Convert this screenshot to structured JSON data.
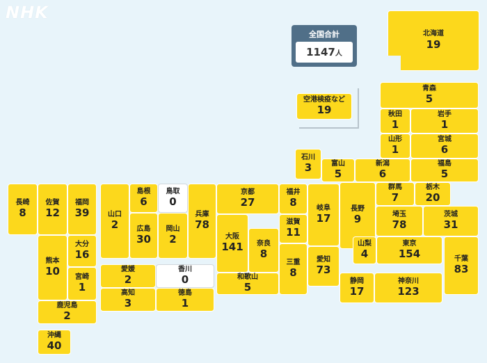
{
  "logo": "NHK",
  "total": {
    "label": "全国合計",
    "value": "1147",
    "unit": "人"
  },
  "colors": {
    "filled": "#fcd81c",
    "zero": "#ffffff",
    "background": "#e8f4fa",
    "total_panel": "#506f88"
  },
  "regions": [
    {
      "id": "hokkaido",
      "name": "北海道",
      "count": "19"
    },
    {
      "id": "quarantine",
      "name": "空港検疫など",
      "count": "19"
    },
    {
      "id": "aomori",
      "name": "青森",
      "count": "5"
    },
    {
      "id": "akita",
      "name": "秋田",
      "count": "1"
    },
    {
      "id": "iwate",
      "name": "岩手",
      "count": "1"
    },
    {
      "id": "yamagata",
      "name": "山形",
      "count": "1"
    },
    {
      "id": "miyagi",
      "name": "宮城",
      "count": "6"
    },
    {
      "id": "ishikawa",
      "name": "石川",
      "count": "3"
    },
    {
      "id": "toyama",
      "name": "富山",
      "count": "5"
    },
    {
      "id": "niigata",
      "name": "新潟",
      "count": "6"
    },
    {
      "id": "fukushima",
      "name": "福島",
      "count": "5"
    },
    {
      "id": "nagasaki",
      "name": "長崎",
      "count": "8"
    },
    {
      "id": "saga",
      "name": "佐賀",
      "count": "12"
    },
    {
      "id": "fukuoka",
      "name": "福岡",
      "count": "39"
    },
    {
      "id": "yamaguchi",
      "name": "山口",
      "count": "2"
    },
    {
      "id": "shimane",
      "name": "島根",
      "count": "6"
    },
    {
      "id": "tottori",
      "name": "鳥取",
      "count": "0"
    },
    {
      "id": "hyogo",
      "name": "兵庫",
      "count": "78"
    },
    {
      "id": "kyoto",
      "name": "京都",
      "count": "27"
    },
    {
      "id": "fukui",
      "name": "福井",
      "count": "8"
    },
    {
      "id": "gifu",
      "name": "岐阜",
      "count": "17"
    },
    {
      "id": "nagano",
      "name": "長野",
      "count": "9"
    },
    {
      "id": "gunma",
      "name": "群馬",
      "count": "7"
    },
    {
      "id": "tochigi",
      "name": "栃木",
      "count": "20"
    },
    {
      "id": "hiroshima",
      "name": "広島",
      "count": "30"
    },
    {
      "id": "okayama",
      "name": "岡山",
      "count": "2"
    },
    {
      "id": "osaka",
      "name": "大阪",
      "count": "141"
    },
    {
      "id": "nara",
      "name": "奈良",
      "count": "8"
    },
    {
      "id": "shiga",
      "name": "滋賀",
      "count": "11"
    },
    {
      "id": "saitama",
      "name": "埼玉",
      "count": "78"
    },
    {
      "id": "ibaraki",
      "name": "茨城",
      "count": "31"
    },
    {
      "id": "kumamoto",
      "name": "熊本",
      "count": "10"
    },
    {
      "id": "oita",
      "name": "大分",
      "count": "16"
    },
    {
      "id": "miyazaki",
      "name": "宮崎",
      "count": "1"
    },
    {
      "id": "mie",
      "name": "三重",
      "count": "8"
    },
    {
      "id": "aichi",
      "name": "愛知",
      "count": "73"
    },
    {
      "id": "yamanashi",
      "name": "山梨",
      "count": "4"
    },
    {
      "id": "tokyo",
      "name": "東京",
      "count": "154"
    },
    {
      "id": "chiba",
      "name": "千葉",
      "count": "83"
    },
    {
      "id": "ehime",
      "name": "愛媛",
      "count": "2"
    },
    {
      "id": "kagawa",
      "name": "香川",
      "count": "0"
    },
    {
      "id": "kochi",
      "name": "高知",
      "count": "3"
    },
    {
      "id": "tokushima",
      "name": "徳島",
      "count": "1"
    },
    {
      "id": "wakayama",
      "name": "和歌山",
      "count": "5"
    },
    {
      "id": "shizuoka",
      "name": "静岡",
      "count": "17"
    },
    {
      "id": "kanagawa",
      "name": "神奈川",
      "count": "123"
    },
    {
      "id": "kagoshima",
      "name": "鹿児島",
      "count": "2"
    },
    {
      "id": "okinawa",
      "name": "沖縄",
      "count": "40"
    }
  ]
}
